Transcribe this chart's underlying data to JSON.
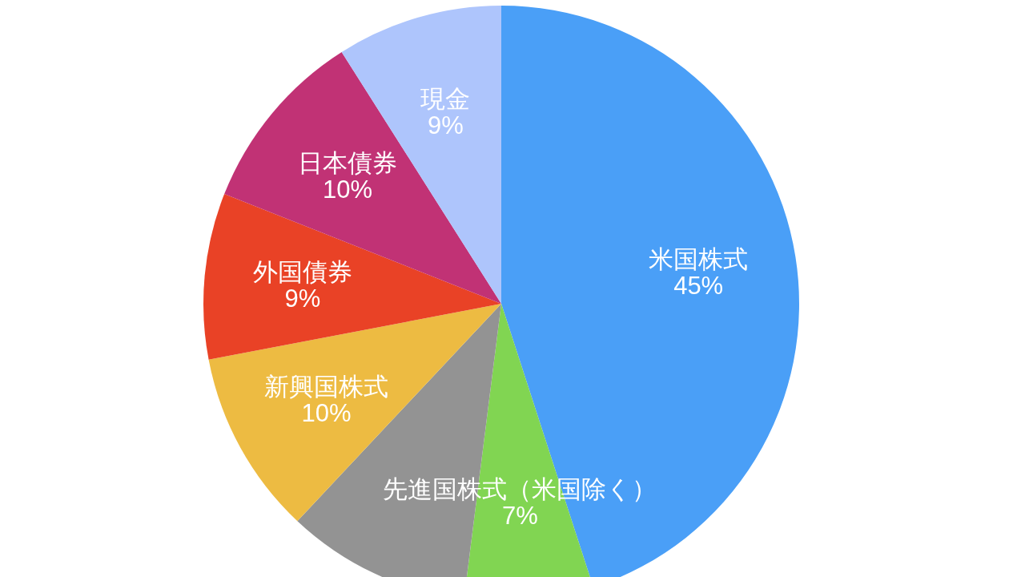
{
  "chart_data": {
    "type": "pie",
    "categories": [
      "米国株式",
      "先進国株式（米国除く）",
      null,
      "新興国株式",
      "外国債券",
      "日本債券",
      "現金"
    ],
    "values": [
      45,
      7,
      10,
      10,
      9,
      10,
      9
    ],
    "colors": [
      "#4a9ff7",
      "#81d552",
      "#939393",
      "#edbb42",
      "#e94226",
      "#c13275",
      "#aec5fc"
    ],
    "value_labels": [
      "45%",
      "7%",
      null,
      "10%",
      "9%",
      "10%",
      "9%"
    ]
  }
}
